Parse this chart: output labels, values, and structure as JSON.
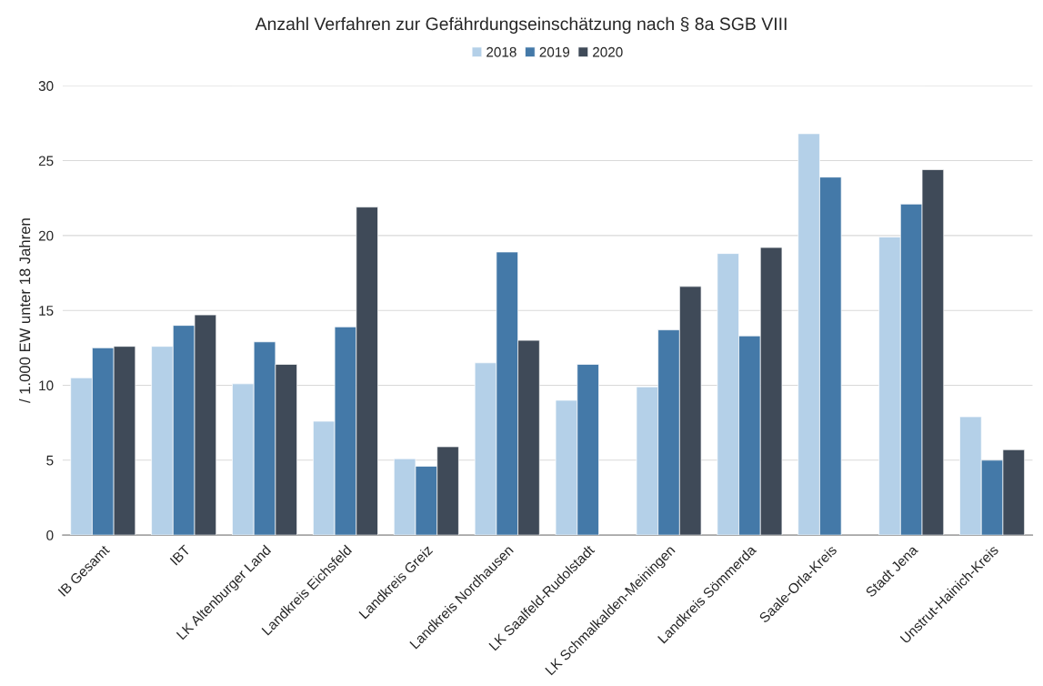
{
  "chart_data": {
    "type": "bar",
    "title": "Anzahl Verfahren zur Gefährdungseinschätzung nach § 8a SGB VIII",
    "ylabel": "/ 1.000 EW unter 18 Jahren",
    "categories": [
      "IB Gesamt",
      "IBT",
      "LK Altenburger Land",
      "Landkreis Eichsfeld",
      "Landkreis Greiz",
      "Landkreis Nordhausen",
      "LK Saalfeld-Rudolstadt",
      "LK Schmalkalden-Meiningen",
      "Landkreis Sömmerda",
      "Saale-Orla-Kreis",
      "Stadt Jena",
      "Unstrut-Hainich-Kreis"
    ],
    "series": [
      {
        "name": "2018",
        "color": "#b4d0e8",
        "values": [
          10.5,
          12.6,
          10.1,
          7.6,
          5.1,
          11.5,
          9.0,
          9.9,
          18.8,
          26.8,
          19.9,
          7.9
        ]
      },
      {
        "name": "2019",
        "color": "#4479a8",
        "values": [
          12.5,
          14.0,
          12.9,
          13.9,
          4.6,
          18.9,
          11.4,
          13.7,
          13.3,
          23.9,
          22.1,
          5.0
        ]
      },
      {
        "name": "2020",
        "color": "#3f4a58",
        "values": [
          12.6,
          14.7,
          11.4,
          21.9,
          5.9,
          13.0,
          null,
          16.6,
          19.2,
          null,
          24.4,
          5.7
        ]
      }
    ],
    "ylim": [
      0,
      30
    ],
    "yticks": [
      0,
      5,
      10,
      15,
      20,
      25,
      30
    ],
    "grid": "y",
    "legend": "top"
  }
}
